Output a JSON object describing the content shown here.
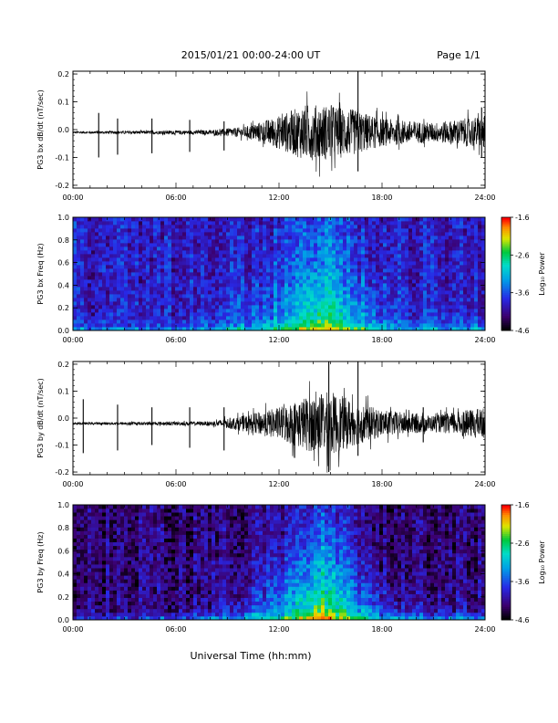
{
  "header": {
    "title": "2015/01/21  00:00-24:00 UT",
    "page": "Page 1/1"
  },
  "footer": {
    "xlabel": "Universal Time (hh:mm)"
  },
  "colors": {
    "trace": "#000000",
    "axis": "#000000"
  },
  "chart_data": [
    {
      "type": "line",
      "ylabel": "PG3 bx dB/dt (nT/sec)",
      "x_ticks": [
        "00:00",
        "06:00",
        "12:00",
        "18:00",
        "24:00"
      ],
      "y_ticks": [
        "0.2",
        "0.1",
        "0.0",
        "-0.1",
        "-0.2"
      ],
      "xlim": [
        0,
        24
      ],
      "ylim": [
        -0.21,
        0.21
      ],
      "baseline": -0.01,
      "spikes": [
        {
          "x": 1.5,
          "y_min": -0.1,
          "y_max": 0.06
        },
        {
          "x": 2.6,
          "y_min": -0.09,
          "y_max": 0.04
        },
        {
          "x": 4.6,
          "y_min": -0.085,
          "y_max": 0.04
        },
        {
          "x": 6.8,
          "y_min": -0.08,
          "y_max": 0.035
        },
        {
          "x": 8.8,
          "y_min": -0.075,
          "y_max": 0.03
        },
        {
          "x": 16.6,
          "y_min": -0.15,
          "y_max": 0.21
        },
        {
          "x": 23.8,
          "y_min": -0.1,
          "y_max": 0.08
        }
      ],
      "activity": [
        {
          "x": 0,
          "amp": 0.004
        },
        {
          "x": 8,
          "amp": 0.008
        },
        {
          "x": 10,
          "amp": 0.02
        },
        {
          "x": 12,
          "amp": 0.06
        },
        {
          "x": 13.5,
          "amp": 0.1
        },
        {
          "x": 15,
          "amp": 0.1
        },
        {
          "x": 16.5,
          "amp": 0.08
        },
        {
          "x": 18,
          "amp": 0.05
        },
        {
          "x": 21,
          "amp": 0.035
        },
        {
          "x": 24,
          "amp": 0.06
        }
      ]
    },
    {
      "type": "heatmap",
      "ylabel": "PG3 bx Freq (Hz)",
      "x_ticks": [
        "00:00",
        "06:00",
        "12:00",
        "18:00",
        "24:00"
      ],
      "y_ticks": [
        "1.0",
        "0.8",
        "0.6",
        "0.4",
        "0.2",
        "0.0"
      ],
      "xlim": [
        0,
        24
      ],
      "ylim": [
        0,
        1.0
      ],
      "colorbar": {
        "label": "Log₁₀ Power",
        "ticks": [
          "-1.6",
          "-2.6",
          "-3.6",
          "-4.6"
        ],
        "range": [
          -4.6,
          -1.6
        ]
      },
      "background_level": -3.9,
      "storm": [
        {
          "x": 0,
          "level": -3.9,
          "reach": 0.05
        },
        {
          "x": 6,
          "level": -3.85,
          "reach": 0.1
        },
        {
          "x": 9,
          "level": -3.6,
          "reach": 0.25
        },
        {
          "x": 12,
          "level": -3.2,
          "reach": 0.45
        },
        {
          "x": 14.5,
          "level": -2.4,
          "reach": 0.7
        },
        {
          "x": 16.5,
          "level": -3.0,
          "reach": 0.4
        },
        {
          "x": 19,
          "level": -3.6,
          "reach": 0.2
        },
        {
          "x": 24,
          "level": -3.7,
          "reach": 0.15
        }
      ]
    },
    {
      "type": "line",
      "ylabel": "PG3 by dB/dt (nT/sec)",
      "x_ticks": [
        "00:00",
        "06:00",
        "12:00",
        "18:00",
        "24:00"
      ],
      "y_ticks": [
        "0.2",
        "0.1",
        "0.0",
        "-0.1",
        "-0.2"
      ],
      "xlim": [
        0,
        24
      ],
      "ylim": [
        -0.21,
        0.21
      ],
      "baseline": -0.02,
      "spikes": [
        {
          "x": 0.6,
          "y_min": -0.13,
          "y_max": 0.07
        },
        {
          "x": 2.6,
          "y_min": -0.12,
          "y_max": 0.05
        },
        {
          "x": 4.6,
          "y_min": -0.1,
          "y_max": 0.04
        },
        {
          "x": 6.8,
          "y_min": -0.11,
          "y_max": 0.04
        },
        {
          "x": 8.8,
          "y_min": -0.12,
          "y_max": 0.04
        },
        {
          "x": 14.9,
          "y_min": -0.2,
          "y_max": 0.21
        },
        {
          "x": 16.6,
          "y_min": -0.14,
          "y_max": 0.21
        },
        {
          "x": 20.4,
          "y_min": -0.09,
          "y_max": 0.04
        }
      ],
      "activity": [
        {
          "x": 0,
          "amp": 0.004
        },
        {
          "x": 8,
          "amp": 0.008
        },
        {
          "x": 10,
          "amp": 0.03
        },
        {
          "x": 12,
          "amp": 0.06
        },
        {
          "x": 13.5,
          "amp": 0.1
        },
        {
          "x": 15,
          "amp": 0.12
        },
        {
          "x": 16.5,
          "amp": 0.08
        },
        {
          "x": 18,
          "amp": 0.05
        },
        {
          "x": 21,
          "amp": 0.03
        },
        {
          "x": 24,
          "amp": 0.06
        }
      ]
    },
    {
      "type": "heatmap",
      "ylabel": "PG3 by Freq (Hz)",
      "x_ticks": [
        "00:00",
        "06:00",
        "12:00",
        "18:00",
        "24:00"
      ],
      "y_ticks": [
        "1.0",
        "0.8",
        "0.6",
        "0.4",
        "0.2",
        "0.0"
      ],
      "xlim": [
        0,
        24
      ],
      "ylim": [
        0,
        1.0
      ],
      "colorbar": {
        "label": "Log₁₀ Power",
        "ticks": [
          "-1.6",
          "-2.6",
          "-3.6",
          "-4.6"
        ],
        "range": [
          -4.6,
          -1.6
        ]
      },
      "background_level": -4.2,
      "storm": [
        {
          "x": 0,
          "level": -4.2,
          "reach": 0.05
        },
        {
          "x": 6,
          "level": -4.1,
          "reach": 0.1
        },
        {
          "x": 9,
          "level": -3.8,
          "reach": 0.2
        },
        {
          "x": 12,
          "level": -3.2,
          "reach": 0.45
        },
        {
          "x": 14.5,
          "level": -2.2,
          "reach": 0.8
        },
        {
          "x": 16.5,
          "level": -3.0,
          "reach": 0.45
        },
        {
          "x": 19,
          "level": -3.7,
          "reach": 0.15
        },
        {
          "x": 24,
          "level": -4.0,
          "reach": 0.1
        }
      ]
    }
  ]
}
